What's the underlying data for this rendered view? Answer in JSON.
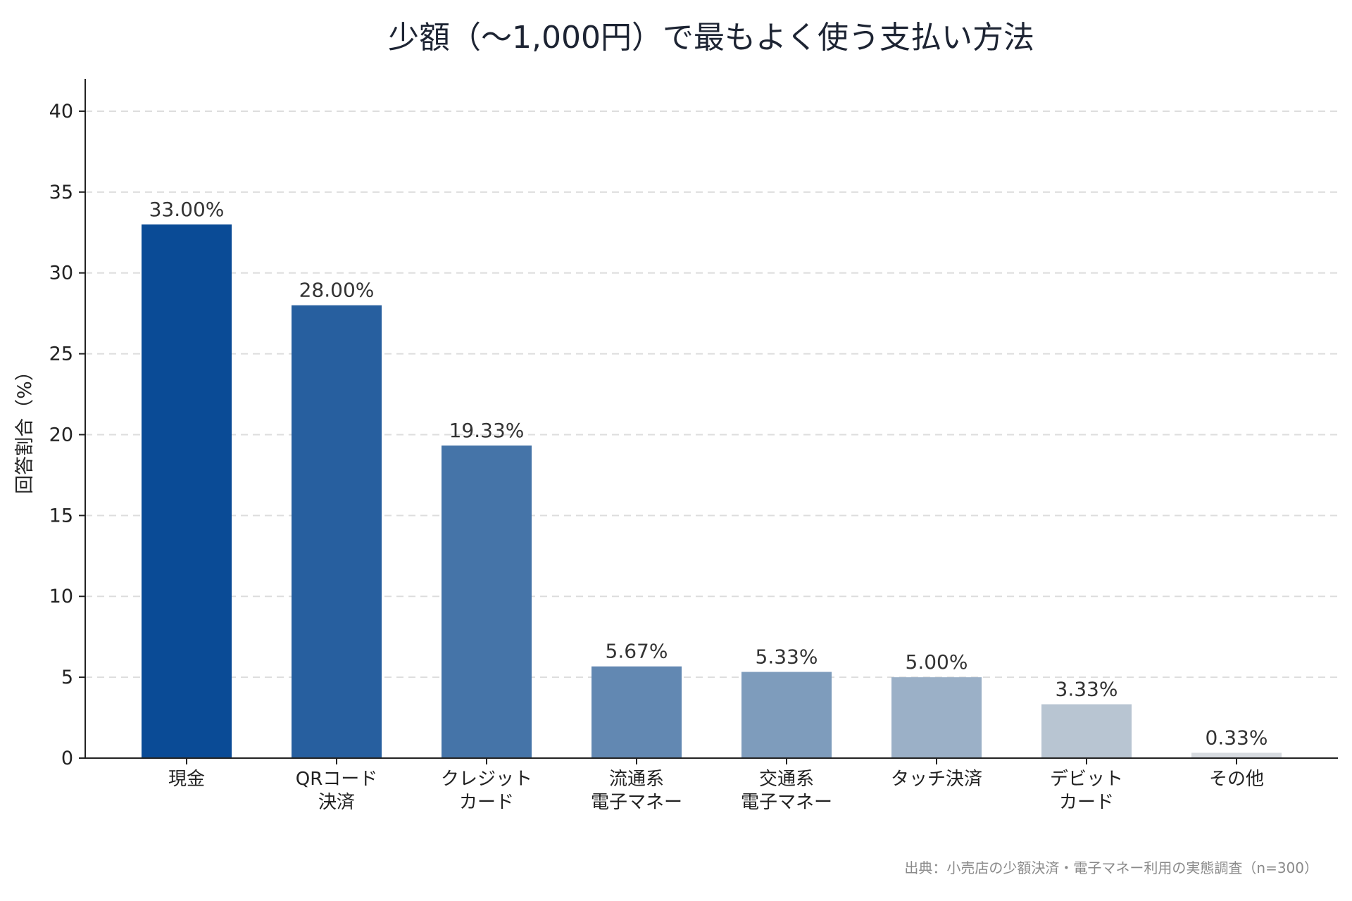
{
  "chart_data": {
    "type": "bar",
    "title": "少額（〜1,000円）で最もよく使う支払い方法",
    "xlabel": "",
    "ylabel": "回答割合（%）",
    "ylim": [
      0,
      42
    ],
    "yticks": [
      0,
      5,
      10,
      15,
      20,
      25,
      30,
      35,
      40
    ],
    "grid": true,
    "categories": [
      [
        "現金"
      ],
      [
        "QRコード",
        "決済"
      ],
      [
        "クレジット",
        "カード"
      ],
      [
        "流通系",
        "電子マネー"
      ],
      [
        "交通系",
        "電子マネー"
      ],
      [
        "タッチ決済"
      ],
      [
        "デビット",
        "カード"
      ],
      [
        "その他"
      ]
    ],
    "values": [
      33.0,
      28.0,
      19.33,
      5.67,
      5.33,
      5.0,
      3.33,
      0.33
    ],
    "value_labels": [
      "33.00%",
      "28.00%",
      "19.33%",
      "5.67%",
      "5.33%",
      "5.00%",
      "3.33%",
      "0.33%"
    ],
    "colors": [
      "#0a4b96",
      "#275f9f",
      "#4574a8",
      "#6288b2",
      "#7e9cbc",
      "#9bb0c7",
      "#b8c5d2",
      "#d7dbe0"
    ],
    "source": "出典：小売店の少額決済・電子マネー利用の実態調査（n=300）"
  }
}
